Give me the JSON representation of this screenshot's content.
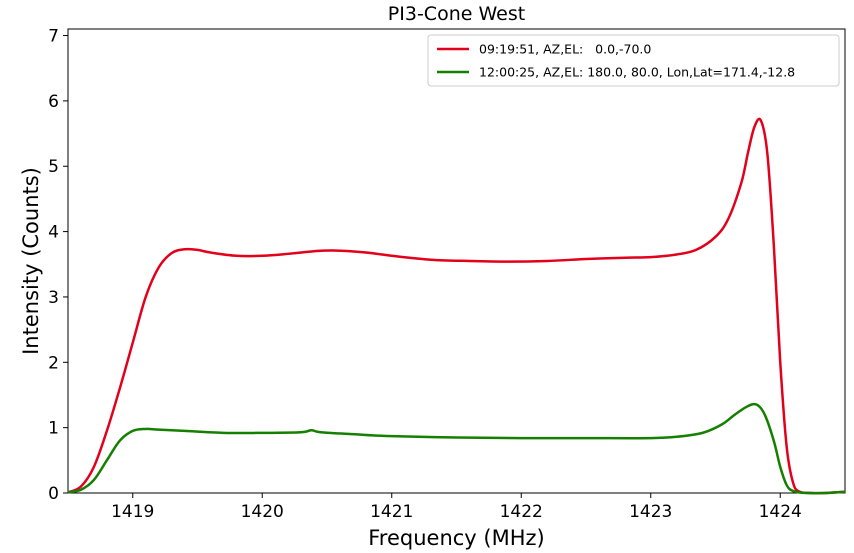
{
  "chart_data": {
    "type": "line",
    "title": "PI3-Cone West",
    "xlabel": "Frequency (MHz)",
    "ylabel": "Intensity (Counts)",
    "xlim": [
      1418.5,
      1424.5
    ],
    "ylim": [
      0,
      7.1
    ],
    "xticks": [
      1419,
      1420,
      1421,
      1422,
      1423,
      1424
    ],
    "yticks": [
      0,
      1,
      2,
      3,
      4,
      5,
      6,
      7
    ],
    "grid": false,
    "legend_position": "top-right",
    "series": [
      {
        "name": "09:19:51, AZ,EL:   0.0,-70.0",
        "color": "#e3001b",
        "x": [
          1418.5,
          1418.6,
          1418.7,
          1418.8,
          1418.9,
          1419.0,
          1419.1,
          1419.2,
          1419.3,
          1419.4,
          1419.5,
          1419.6,
          1419.8,
          1420.0,
          1420.2,
          1420.4,
          1420.55,
          1420.8,
          1421.0,
          1421.3,
          1421.6,
          1421.9,
          1422.2,
          1422.5,
          1422.8,
          1423.0,
          1423.2,
          1423.35,
          1423.5,
          1423.6,
          1423.7,
          1423.75,
          1423.8,
          1423.85,
          1423.9,
          1423.95,
          1424.0,
          1424.05,
          1424.1,
          1424.15,
          1424.25,
          1424.35,
          1424.5
        ],
        "y": [
          0.01,
          0.1,
          0.4,
          0.95,
          1.6,
          2.3,
          3.0,
          3.45,
          3.67,
          3.73,
          3.72,
          3.68,
          3.63,
          3.63,
          3.66,
          3.7,
          3.71,
          3.68,
          3.63,
          3.57,
          3.55,
          3.54,
          3.55,
          3.58,
          3.6,
          3.61,
          3.65,
          3.72,
          3.92,
          4.2,
          4.75,
          5.2,
          5.6,
          5.7,
          5.2,
          3.8,
          2.0,
          0.7,
          0.15,
          0.02,
          0.0,
          0.0,
          0.02
        ]
      },
      {
        "name": "12:00:25, AZ,EL: 180.0, 80.0, Lon,Lat=171.4,-12.8",
        "color": "#158000",
        "x": [
          1418.5,
          1418.6,
          1418.7,
          1418.8,
          1418.9,
          1419.0,
          1419.1,
          1419.2,
          1419.4,
          1419.7,
          1420.0,
          1420.3,
          1420.38,
          1420.45,
          1420.7,
          1421.0,
          1421.5,
          1422.0,
          1422.5,
          1423.0,
          1423.2,
          1423.4,
          1423.55,
          1423.65,
          1423.75,
          1423.82,
          1423.88,
          1423.95,
          1424.0,
          1424.05,
          1424.1,
          1424.2,
          1424.35,
          1424.5
        ],
        "y": [
          0.01,
          0.05,
          0.2,
          0.5,
          0.8,
          0.95,
          0.98,
          0.97,
          0.95,
          0.92,
          0.92,
          0.93,
          0.96,
          0.93,
          0.9,
          0.87,
          0.85,
          0.84,
          0.84,
          0.84,
          0.86,
          0.92,
          1.05,
          1.2,
          1.33,
          1.35,
          1.2,
          0.8,
          0.4,
          0.12,
          0.03,
          0.0,
          0.0,
          0.02
        ]
      }
    ]
  }
}
